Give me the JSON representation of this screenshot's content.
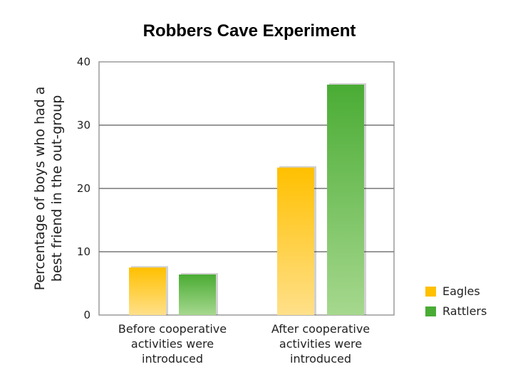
{
  "chart_data": {
    "type": "bar",
    "title": "Robbers Cave Experiment",
    "ylabel": [
      "Percentage of boys who had a",
      "best friend in the out-group"
    ],
    "xlabel": "",
    "categories": [
      [
        "Before cooperative",
        "activities were",
        "introduced"
      ],
      [
        "After cooperative",
        "activities were",
        "introduced"
      ]
    ],
    "series": [
      {
        "name": "Eagles",
        "values": [
          7.5,
          23.3
        ],
        "color_top": "#ffc000",
        "color_bottom": "#ffe08a"
      },
      {
        "name": "Rattlers",
        "values": [
          6.4,
          36.4
        ],
        "color_top": "#4aac34",
        "color_bottom": "#a6d88e"
      }
    ],
    "ylim": [
      0,
      40
    ],
    "yticks": [
      "0",
      "10",
      "20",
      "30",
      "40"
    ],
    "grid": true,
    "legend_position": "right"
  }
}
